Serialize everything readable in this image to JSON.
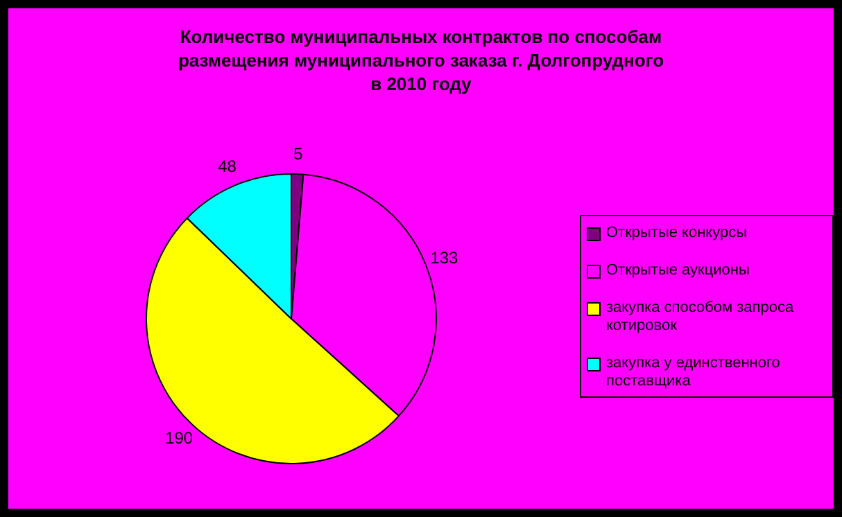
{
  "chart_data": {
    "type": "pie",
    "title": "Количество муниципальных контрактов по способам\nразмещения муниципального заказа г. Долгопрудного\nв 2010 году",
    "categories": [
      "Открытые конкурсы",
      "Открытые аукционы",
      "закупка способом запроса котировок",
      "закупка у единственного поставщика"
    ],
    "values": [
      5,
      133,
      190,
      48
    ],
    "colors": [
      "#800080",
      "#ff00ff",
      "#ffff00",
      "#00ffff"
    ],
    "data_labels": true,
    "legend": "right"
  }
}
